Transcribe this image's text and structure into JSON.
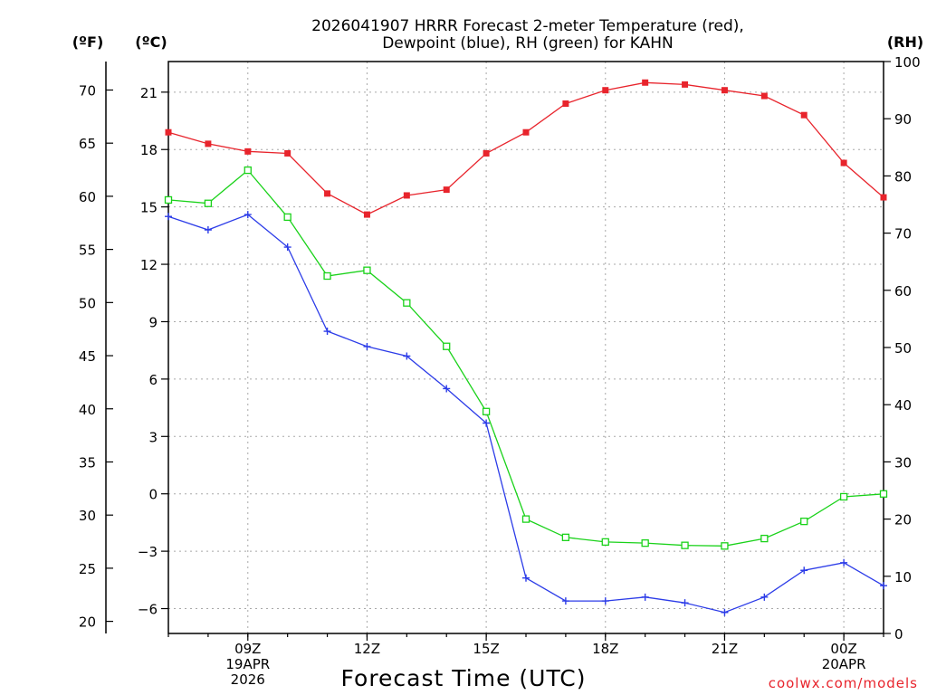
{
  "chart_data": {
    "type": "line",
    "title_line1": "2026041907 HRRR Forecast 2-meter Temperature (red),",
    "title_line2": "Dewpoint (blue), RH (green) for KAHN",
    "xlabel": "Forecast Time (UTC)",
    "credit": "coolwx.com/models",
    "units": {
      "fahrenheit": "(ºF)",
      "celsius": "(ºC)",
      "rh": "(RH)"
    },
    "x_hours": [
      0,
      1,
      2,
      3,
      4,
      5,
      6,
      7,
      8,
      9,
      10,
      11,
      12,
      13,
      14,
      15,
      16,
      17,
      18
    ],
    "x_range": [
      0,
      18
    ],
    "x_ticks": [
      {
        "hour": 2,
        "lines": [
          "09Z",
          "19APR",
          "2026"
        ]
      },
      {
        "hour": 5,
        "lines": [
          "12Z"
        ]
      },
      {
        "hour": 8,
        "lines": [
          "15Z"
        ]
      },
      {
        "hour": 11,
        "lines": [
          "18Z"
        ]
      },
      {
        "hour": 14,
        "lines": [
          "21Z"
        ]
      },
      {
        "hour": 17,
        "lines": [
          "00Z",
          "20APR"
        ]
      }
    ],
    "celsius_range": [
      -7.3,
      22.6
    ],
    "celsius_ticks": [
      "21",
      "18",
      "15",
      "12",
      "9",
      "6",
      "3",
      "0",
      "−3",
      "−6"
    ],
    "celsius_tick_values": [
      21,
      18,
      15,
      12,
      9,
      6,
      3,
      0,
      -3,
      -6
    ],
    "fahrenheit_ticks": [
      "70",
      "65",
      "60",
      "55",
      "50",
      "45",
      "40",
      "35",
      "30",
      "25",
      "20"
    ],
    "fahrenheit_tick_values": [
      70,
      65,
      60,
      55,
      50,
      45,
      40,
      35,
      30,
      25,
      20
    ],
    "rh_range": [
      0,
      100
    ],
    "rh_ticks": [
      "100",
      "90",
      "80",
      "70",
      "60",
      "50",
      "40",
      "30",
      "20",
      "10",
      "0"
    ],
    "rh_tick_values": [
      100,
      90,
      80,
      70,
      60,
      50,
      40,
      30,
      20,
      10,
      0
    ],
    "series": [
      {
        "name": "2-meter Temperature",
        "unit": "C",
        "color": "#e8242c",
        "marker": "filled-square",
        "values": [
          18.9,
          18.3,
          17.9,
          17.8,
          15.7,
          14.6,
          15.6,
          15.9,
          17.8,
          18.9,
          20.4,
          21.1,
          21.5,
          21.4,
          21.1,
          20.8,
          19.8,
          17.3,
          15.5
        ]
      },
      {
        "name": "Dewpoint",
        "unit": "C",
        "color": "#2c3ce8",
        "marker": "plus",
        "values": [
          14.5,
          13.8,
          14.6,
          12.9,
          8.5,
          7.7,
          7.2,
          5.5,
          3.7,
          -4.4,
          -5.6,
          -5.6,
          -5.4,
          -5.7,
          -6.2,
          -5.4,
          -4.0,
          -3.6,
          -4.8
        ]
      },
      {
        "name": "RH",
        "unit": "%",
        "color": "#1ad21a",
        "marker": "open-square",
        "values": [
          75.8,
          75.2,
          81.0,
          72.8,
          62.5,
          63.5,
          57.8,
          50.2,
          38.8,
          20.0,
          16.8,
          16.0,
          15.8,
          15.4,
          15.3,
          16.6,
          19.6,
          23.9,
          24.4
        ]
      }
    ]
  }
}
